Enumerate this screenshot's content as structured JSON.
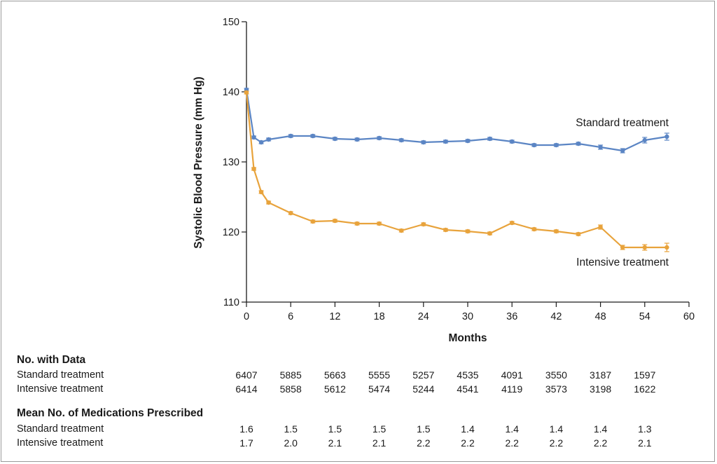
{
  "chart_data": {
    "type": "line",
    "xlabel": "Months",
    "ylabel": "Systolic Blood Pressure (mm Hg)",
    "xlim": [
      0,
      60
    ],
    "ylim": [
      110,
      150
    ],
    "xticks": [
      0,
      6,
      12,
      18,
      24,
      30,
      36,
      42,
      48,
      54,
      60
    ],
    "yticks": [
      110,
      120,
      130,
      140,
      150
    ],
    "x": [
      0,
      1,
      2,
      3,
      6,
      9,
      12,
      15,
      18,
      21,
      24,
      27,
      30,
      33,
      36,
      39,
      42,
      45,
      48,
      51,
      54,
      57
    ],
    "series": [
      {
        "name": "Standard treatment",
        "color": "#5b85c4",
        "values": [
          140.3,
          133.5,
          132.8,
          133.2,
          133.7,
          133.7,
          133.3,
          133.2,
          133.4,
          133.1,
          132.8,
          132.9,
          133.0,
          133.3,
          132.9,
          132.4,
          132.4,
          132.6,
          132.1,
          131.6,
          133.1,
          133.6
        ],
        "errors": [
          0.2,
          0.2,
          0.2,
          0.2,
          0.2,
          0.2,
          0.2,
          0.2,
          0.2,
          0.2,
          0.2,
          0.2,
          0.2,
          0.2,
          0.2,
          0.2,
          0.2,
          0.2,
          0.3,
          0.3,
          0.4,
          0.5
        ]
      },
      {
        "name": "Intensive treatment",
        "color": "#e8a33c",
        "values": [
          139.9,
          129.0,
          125.7,
          124.2,
          122.7,
          121.5,
          121.6,
          121.2,
          121.2,
          120.2,
          121.1,
          120.3,
          120.1,
          119.8,
          121.3,
          120.4,
          120.1,
          119.7,
          120.7,
          117.8,
          117.8,
          117.8
        ],
        "errors": [
          0.2,
          0.2,
          0.2,
          0.2,
          0.2,
          0.2,
          0.2,
          0.2,
          0.2,
          0.2,
          0.2,
          0.2,
          0.2,
          0.2,
          0.2,
          0.2,
          0.2,
          0.2,
          0.3,
          0.3,
          0.4,
          0.6
        ]
      }
    ]
  },
  "table": {
    "months": [
      0,
      6,
      12,
      18,
      24,
      30,
      36,
      42,
      48,
      54
    ],
    "sections": [
      {
        "heading": "No. with Data",
        "rows": [
          {
            "label": "Standard treatment",
            "values": [
              "6407",
              "5885",
              "5663",
              "5555",
              "5257",
              "4535",
              "4091",
              "3550",
              "3187",
              "1597"
            ]
          },
          {
            "label": "Intensive treatment",
            "values": [
              "6414",
              "5858",
              "5612",
              "5474",
              "5244",
              "4541",
              "4119",
              "3573",
              "3198",
              "1622"
            ]
          }
        ]
      },
      {
        "heading": "Mean No. of Medications Prescribed",
        "rows": [
          {
            "label": "Standard treatment",
            "values": [
              "1.6",
              "1.5",
              "1.5",
              "1.5",
              "1.5",
              "1.4",
              "1.4",
              "1.4",
              "1.4",
              "1.3"
            ]
          },
          {
            "label": "Intensive treatment",
            "values": [
              "1.7",
              "2.0",
              "2.1",
              "2.1",
              "2.2",
              "2.2",
              "2.2",
              "2.2",
              "2.2",
              "2.1"
            ]
          }
        ]
      }
    ]
  }
}
